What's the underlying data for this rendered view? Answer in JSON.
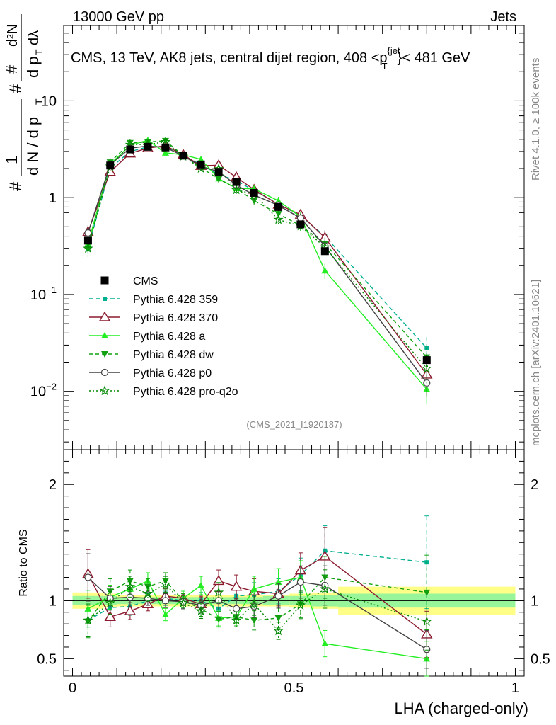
{
  "header": {
    "left": "13000 GeV pp",
    "right": "Jets"
  },
  "chart_data": {
    "type": "line",
    "title": "CMS, 13 TeV, AK8 jets, central dijet region, 408 <p_T^{jet}< 481 GeV",
    "title_parts": {
      "main": "CMS, 13 TeV, AK8 jets, central dijet region, 408 <p",
      "sup": "{jet",
      "sub": "T",
      "tail": "}< 481 GeV"
    },
    "ylabel": "1/N dN/dp_T  d²N/(dp_T dλ)",
    "ylabel_parts": {
      "hash": "#",
      "one": "1",
      "dN": "d N / d p",
      "T": "T",
      "d2N": "d²N",
      "dp": "d p",
      "dl": "dλ"
    },
    "xlabel": "LHA (charged-only)",
    "ratio_ylabel": "Ratio to CMS",
    "watermark": "(CMS_2021_I1920187)",
    "side_text_top": "Rivet 4.1.0, ≥ 100k events",
    "side_text_bottom": "mcplots.cern.ch [arXiv:2401.10621]",
    "xlim": [
      -0.02,
      1.02
    ],
    "ylim_main": [
      0.0025,
      60
    ],
    "ylim_ratio": [
      0.35,
      2.3
    ],
    "main_yticks": [
      {
        "value": 0.01,
        "base": "10",
        "exp": "−2"
      },
      {
        "value": 0.1,
        "base": "10",
        "exp": "−1"
      },
      {
        "value": 1,
        "base": "1",
        "exp": ""
      },
      {
        "value": 10,
        "base": "10",
        "exp": ""
      }
    ],
    "ratio_yticks": [
      {
        "value": 0.5,
        "label": "0.5"
      },
      {
        "value": 1,
        "label": "1"
      },
      {
        "value": 2,
        "label": "2"
      }
    ],
    "xticks": [
      {
        "value": 0,
        "label": "0"
      },
      {
        "value": 0.5,
        "label": "0.5"
      },
      {
        "value": 1,
        "label": "1"
      }
    ],
    "x": [
      0.035,
      0.085,
      0.13,
      0.17,
      0.21,
      0.25,
      0.29,
      0.33,
      0.37,
      0.41,
      0.465,
      0.515,
      0.57,
      0.8
    ],
    "bin_edges": [
      0.0,
      0.07,
      0.1,
      0.15,
      0.19,
      0.23,
      0.27,
      0.31,
      0.35,
      0.39,
      0.43,
      0.49,
      0.54,
      0.6,
      1.0
    ],
    "data": {
      "name": "CMS",
      "values": [
        0.36,
        2.15,
        3.15,
        3.35,
        3.3,
        2.72,
        2.2,
        1.85,
        1.45,
        1.12,
        0.8,
        0.53,
        0.28,
        0.021
      ],
      "band_inner": [
        0.04,
        0.04,
        0.03,
        0.03,
        0.03,
        0.03,
        0.03,
        0.03,
        0.03,
        0.03,
        0.04,
        0.04,
        0.05,
        0.06
      ],
      "band_outer": [
        0.07,
        0.06,
        0.05,
        0.05,
        0.05,
        0.05,
        0.05,
        0.05,
        0.05,
        0.05,
        0.05,
        0.06,
        0.07,
        0.12
      ]
    },
    "series": [
      {
        "name": "Pythia 6.428 359",
        "color": "#00b090",
        "dash": "6,4",
        "marker": "square",
        "ratio": [
          0.83,
          0.94,
          0.95,
          1.0,
          1.02,
          1.0,
          1.0,
          0.93,
          1.04,
          1.05,
          1.08,
          1.22,
          1.43,
          1.33
        ],
        "err": [
          0.17,
          0.1,
          0.08,
          0.06,
          0.06,
          0.06,
          0.07,
          0.08,
          0.09,
          0.1,
          0.1,
          0.12,
          0.15,
          0.3
        ]
      },
      {
        "name": "Pythia 6.428 370",
        "color": "#8b1a2e",
        "dash": "",
        "marker": "triangle-open",
        "ratio": [
          1.23,
          0.86,
          0.91,
          0.97,
          1.04,
          1.02,
          0.97,
          1.17,
          1.12,
          1.08,
          1.06,
          1.26,
          1.38,
          0.71
        ],
        "err": [
          0.17,
          0.1,
          0.08,
          0.06,
          0.06,
          0.06,
          0.07,
          0.08,
          0.09,
          0.1,
          0.1,
          0.12,
          0.18,
          0.28
        ]
      },
      {
        "name": "Pythia 6.428 a",
        "color": "#22ee22",
        "dash": "",
        "marker": "triangle",
        "ratio": [
          0.93,
          1.03,
          1.1,
          1.17,
          0.88,
          1.02,
          1.13,
          0.85,
          0.86,
          1.1,
          1.16,
          1.2,
          0.63,
          0.5
        ],
        "err": [
          0.17,
          0.1,
          0.08,
          0.06,
          0.06,
          0.06,
          0.07,
          0.08,
          0.09,
          0.1,
          0.1,
          0.12,
          0.18,
          0.3
        ]
      },
      {
        "name": "Pythia 6.428 dw",
        "color": "#10a010",
        "dash": "5,4",
        "marker": "triangle-down",
        "ratio": [
          0.82,
          1.08,
          1.17,
          1.12,
          1.17,
          1.0,
          0.93,
          0.84,
          0.86,
          0.83,
          0.85,
          0.97,
          1.2,
          1.07
        ],
        "err": [
          0.17,
          0.1,
          0.08,
          0.06,
          0.06,
          0.06,
          0.07,
          0.08,
          0.09,
          0.1,
          0.1,
          0.12,
          0.15,
          0.3
        ]
      },
      {
        "name": "Pythia 6.428 p0",
        "color": "#404040",
        "dash": "",
        "marker": "circle-open",
        "ratio": [
          1.2,
          1.02,
          1.03,
          1.02,
          1.0,
          0.99,
          0.96,
          1.0,
          0.93,
          0.95,
          1.04,
          1.16,
          1.13,
          0.58
        ],
        "err": [
          0.17,
          0.1,
          0.08,
          0.06,
          0.06,
          0.06,
          0.07,
          0.08,
          0.09,
          0.1,
          0.1,
          0.12,
          0.15,
          0.28
        ]
      },
      {
        "name": "Pythia 6.428 pro-q2o",
        "color": "#008800",
        "dash": "2,3",
        "marker": "star",
        "ratio": [
          0.83,
          0.98,
          1.12,
          1.06,
          1.14,
          0.98,
          0.91,
          1.07,
          0.83,
          0.97,
          0.74,
          0.96,
          1.1,
          0.82
        ],
        "err": [
          0.17,
          0.1,
          0.08,
          0.06,
          0.06,
          0.06,
          0.07,
          0.08,
          0.09,
          0.1,
          0.1,
          0.12,
          0.15,
          0.3
        ]
      }
    ]
  }
}
